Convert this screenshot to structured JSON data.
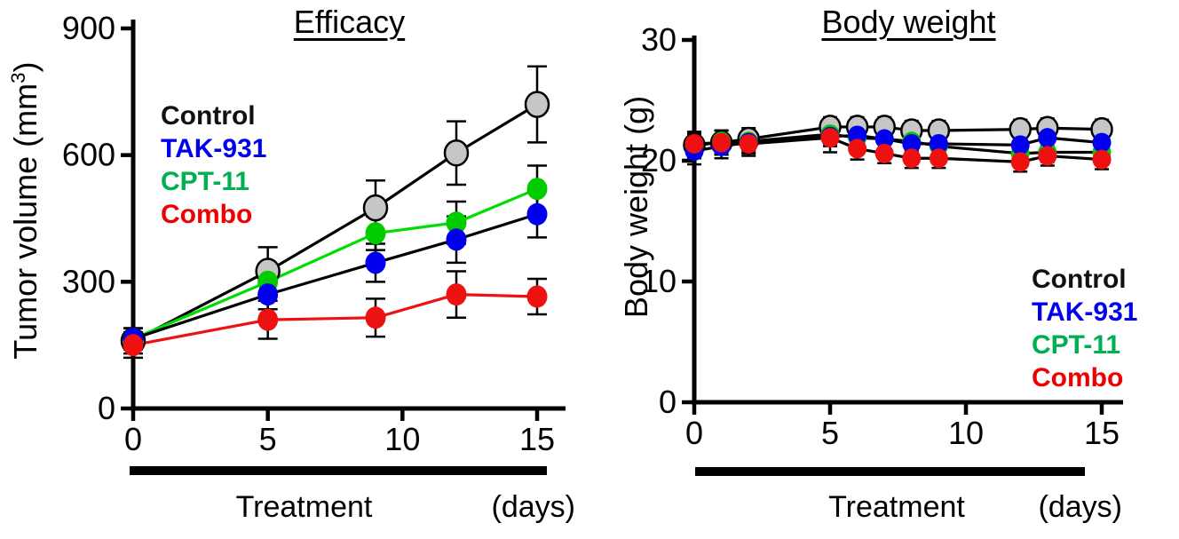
{
  "figure": {
    "background": "#ffffff"
  },
  "colors": {
    "control_text": "#111111",
    "tak931_text": "#0000ee",
    "cpt11_text": "#00b050",
    "combo_text": "#ee0000",
    "axis": "#000000"
  },
  "chart_data": [
    {
      "type": "line",
      "title": "Efficacy",
      "ylabel": {
        "main": "Tumor volume (mm",
        "sup": "3",
        "end": ")"
      },
      "xlabel": "Treatment",
      "xunit": "(days)",
      "xticks": [
        0,
        5,
        10,
        15
      ],
      "yticks": [
        0,
        300,
        600,
        900
      ],
      "xlim": [
        0,
        16
      ],
      "ylim": [
        0,
        900
      ],
      "legend_position": "upper-left",
      "grid": false,
      "x": [
        0,
        5,
        9,
        12,
        15
      ],
      "series": [
        {
          "name": "Control",
          "legend_color": "#111111",
          "line_color": "#000000",
          "marker_color": "#c6c6c6",
          "marker_stroke": "#000000",
          "values": [
            160,
            325,
            475,
            605,
            720
          ],
          "errors": [
            30,
            57,
            65,
            75,
            90
          ]
        },
        {
          "name": "TAK-931",
          "legend_color": "#0000ee",
          "line_color": "#000000",
          "marker_color": "#0000ee",
          "marker_stroke": "",
          "values": [
            165,
            270,
            345,
            400,
            460
          ],
          "errors": [
            25,
            35,
            45,
            55,
            55
          ]
        },
        {
          "name": "CPT-11",
          "legend_color": "#00b050",
          "line_color": "#00dd00",
          "marker_color": "#00cc00",
          "marker_stroke": "",
          "values": [
            165,
            300,
            415,
            440,
            520
          ],
          "errors": [
            25,
            35,
            40,
            50,
            55
          ]
        },
        {
          "name": "Combo",
          "legend_color": "#ee0000",
          "line_color": "#ee1111",
          "marker_color": "#ee1111",
          "marker_stroke": "",
          "values": [
            150,
            210,
            215,
            270,
            265
          ],
          "errors": [
            30,
            45,
            45,
            55,
            42
          ]
        }
      ]
    },
    {
      "type": "line",
      "title": "Body weight",
      "ylabel": {
        "main": "Body weight",
        "sup": "",
        "end": " (g)"
      },
      "xlabel": "Treatment",
      "xunit": "(days)",
      "xticks": [
        0,
        5,
        10,
        15
      ],
      "yticks": [
        0,
        10,
        20,
        30
      ],
      "xlim": [
        0,
        16
      ],
      "ylim": [
        0,
        30
      ],
      "legend_position": "lower-right",
      "grid": false,
      "x": [
        0,
        1,
        2,
        5,
        6,
        7,
        8,
        9,
        12,
        13,
        15
      ],
      "series": [
        {
          "name": "Control",
          "legend_color": "#111111",
          "line_color": "#000000",
          "marker_color": "#c6c6c6",
          "marker_stroke": "#000000",
          "values": [
            21.3,
            21.5,
            21.8,
            22.8,
            22.8,
            22.8,
            22.5,
            22.5,
            22.6,
            22.7,
            22.6
          ],
          "errors": [
            1.0,
            1.0,
            0.9,
            0.8,
            0.8,
            0.8,
            0.8,
            0.8,
            0.8,
            0.8,
            0.8
          ]
        },
        {
          "name": "TAK-931",
          "legend_color": "#0000ee",
          "line_color": "#000000",
          "marker_color": "#0000ee",
          "marker_stroke": "",
          "values": [
            20.8,
            21.2,
            21.5,
            22.0,
            22.1,
            21.8,
            21.4,
            21.4,
            21.3,
            21.9,
            21.5
          ],
          "errors": [
            1.1,
            1.0,
            0.9,
            0.8,
            0.8,
            0.8,
            0.8,
            0.8,
            0.8,
            0.8,
            0.8
          ]
        },
        {
          "name": "CPT-11",
          "legend_color": "#00b050",
          "line_color": "#000000",
          "marker_color": "#00cc00",
          "marker_stroke": "",
          "values": [
            21.2,
            21.6,
            21.6,
            22.2,
            21.9,
            21.8,
            21.6,
            21.2,
            20.6,
            20.7,
            20.7
          ],
          "errors": [
            1.0,
            0.9,
            0.9,
            0.8,
            0.8,
            0.8,
            0.8,
            0.8,
            0.8,
            0.8,
            0.8
          ]
        },
        {
          "name": "Combo",
          "legend_color": "#ee0000",
          "line_color": "#000000",
          "marker_color": "#ee1111",
          "marker_stroke": "",
          "values": [
            21.4,
            21.5,
            21.4,
            21.9,
            21.0,
            20.6,
            20.2,
            20.2,
            19.9,
            20.4,
            20.1
          ],
          "errors": [
            1.0,
            1.0,
            1.0,
            1.2,
            0.9,
            0.8,
            0.8,
            0.8,
            0.8,
            0.8,
            0.8
          ]
        }
      ]
    }
  ]
}
